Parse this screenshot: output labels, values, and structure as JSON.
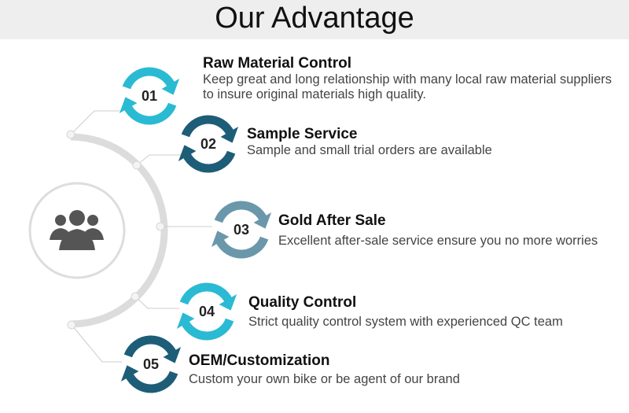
{
  "title": "Our Advantage",
  "center_icon": "team-people-icon",
  "colors": {
    "cyan": "#2bbad3",
    "dark": "#1d5d78",
    "grey_blue": "#6b97ab"
  },
  "items": [
    {
      "num": "01",
      "title": "Raw Material Control",
      "desc": "Keep great and long relationship with many local raw material suppliers to insure original materials high quality.",
      "color": "#2bbad3"
    },
    {
      "num": "02",
      "title": "Sample Service",
      "desc": "Sample and small trial orders are available",
      "color": "#1d5d78"
    },
    {
      "num": "03",
      "title": "Gold After Sale",
      "desc": "Excellent after-sale service ensure you no more worries",
      "color": "#6b97ab"
    },
    {
      "num": "04",
      "title": "Quality Control",
      "desc": "Strict quality control system with experienced QC team",
      "color": "#2bbad3"
    },
    {
      "num": "05",
      "title": "OEM/Customization",
      "desc": "Custom your own bike or be agent of our brand",
      "color": "#1d5d78"
    }
  ]
}
